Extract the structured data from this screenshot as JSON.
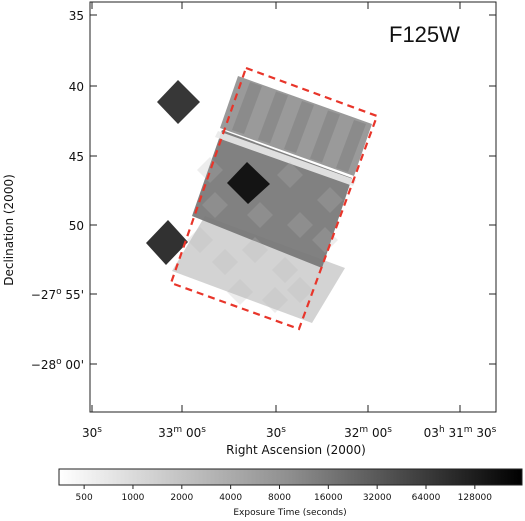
{
  "chart_data": {
    "type": "heatmap",
    "title": "F125W",
    "xlabel": "Right Ascension (2000)",
    "ylabel": "Declination (2000)",
    "x_ticks": [
      {
        "h": "",
        "m": "",
        "s": "30"
      },
      {
        "h": "",
        "m": "33",
        "s": "00"
      },
      {
        "h": "",
        "m": "",
        "s": "30"
      },
      {
        "h": "",
        "m": "32",
        "s": "00"
      },
      {
        "h": "03",
        "m": "31",
        "s": "30"
      }
    ],
    "y_ticks": [
      {
        "deg": "",
        "min": "35"
      },
      {
        "deg": "",
        "min": "40"
      },
      {
        "deg": "",
        "min": "45"
      },
      {
        "deg": "",
        "min": "50"
      },
      {
        "deg": "−27",
        "min": "55'"
      },
      {
        "deg": "−28",
        "min": "00'"
      }
    ],
    "ylim_arcmin_south_of_27": [
      33.5,
      64.4
    ],
    "grid": false,
    "colorbar": {
      "label": "Exposure Time (seconds)",
      "scale": "log",
      "ticks": [
        "500",
        "1000",
        "2000",
        "4000",
        "8000",
        "16000",
        "32000",
        "64000",
        "128000"
      ],
      "range": [
        350,
        250000
      ],
      "colormap": "white-to-black"
    },
    "regions": [
      {
        "name": "northern-strip",
        "exposure_s": 6000
      },
      {
        "name": "central-deep-field",
        "exposure_s": 12000
      },
      {
        "name": "southern-shallow-field",
        "exposure_s": 1200
      },
      {
        "name": "center-deep-pointing",
        "exposure_s": 150000
      },
      {
        "name": "offset-pointing-north",
        "exposure_s": 60000
      },
      {
        "name": "offset-pointing-south",
        "exposure_s": 70000
      }
    ],
    "outline": {
      "style": "dashed",
      "color": "#e8352a"
    }
  }
}
